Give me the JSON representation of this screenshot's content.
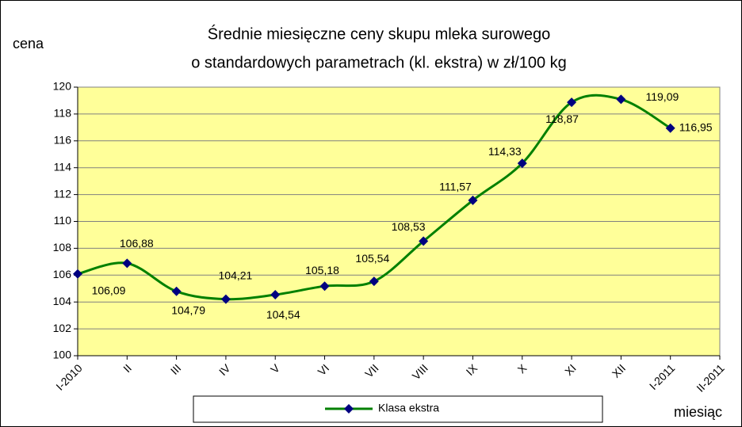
{
  "chart_data": {
    "type": "line",
    "title": [
      "Średnie miesięczne ceny skupu mleka surowego",
      "o standardowych parametrach (kl. ekstra) w zł/100 kg"
    ],
    "y_label": "cena",
    "x_label": "miesiąc",
    "categories": [
      "I-2010",
      "II",
      "III",
      "IV",
      "V",
      "VI",
      "VII",
      "VIII",
      "IX",
      "X",
      "XI",
      "XII",
      "I-2011",
      "II-2011"
    ],
    "series": [
      {
        "name": "Klasa ekstra",
        "color": "#008000",
        "marker_color": "#000080",
        "values": [
          106.09,
          106.88,
          104.79,
          104.21,
          104.54,
          105.18,
          105.54,
          108.53,
          111.57,
          114.33,
          118.87,
          119.09,
          116.95,
          null
        ],
        "value_labels": [
          "106,09",
          "106,88",
          "104,79",
          "104,21",
          "104,54",
          "105,18",
          "105,54",
          "108,53",
          "111,57",
          "114,33",
          "118,87",
          "119,09",
          "116,95",
          null
        ]
      }
    ],
    "ylim": [
      100,
      120
    ],
    "yticks": [
      100,
      102,
      104,
      106,
      108,
      110,
      112,
      114,
      116,
      118,
      120
    ],
    "grid": true,
    "plot_background": "#ffff99",
    "legend": "bottom"
  }
}
